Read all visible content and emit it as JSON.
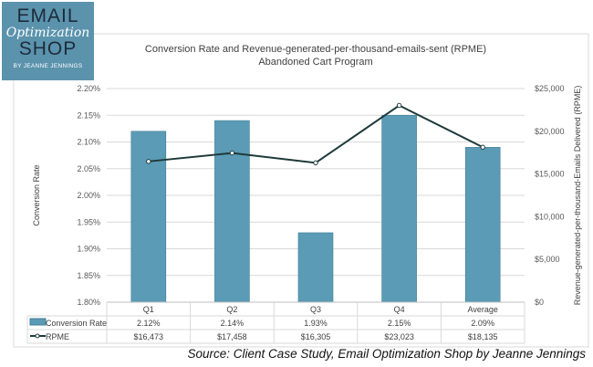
{
  "logo": {
    "line1": "EMAIL",
    "line2": "Optimization",
    "line3": "SHOP",
    "line4": "BY JEANNE JENNINGS"
  },
  "source": "Source: Client Case Study, Email Optimization Shop by Jeanne Jennings",
  "chart_data": {
    "type": "bar+line",
    "title": "Conversion Rate and Revenue-generated-per-thousand-emails-sent (RPME)",
    "subtitle": "Abandoned Cart Program",
    "categories": [
      "Q1",
      "Q2",
      "Q3",
      "Q4",
      "Average"
    ],
    "ylabel": "Conversion Rate",
    "y2label": "Revenue-generated-per-thousand-Emails Delivered (RPME)",
    "ylim": [
      1.8,
      2.2
    ],
    "yticks": [
      "1.80%",
      "1.85%",
      "1.90%",
      "1.95%",
      "2.00%",
      "2.05%",
      "2.10%",
      "2.15%",
      "2.20%"
    ],
    "y2lim": [
      0,
      25000
    ],
    "y2ticks": [
      "$0",
      "$5,000",
      "$10,000",
      "$15,000",
      "$20,000",
      "$25,000"
    ],
    "grid": true,
    "series": [
      {
        "name": "Conversion Rate",
        "type": "bar",
        "axis": "left",
        "values": [
          2.12,
          2.14,
          1.93,
          2.15,
          2.09
        ],
        "labels": [
          "2.12%",
          "2.14%",
          "1.93%",
          "2.15%",
          "2.09%"
        ],
        "color": "#5b9bb5"
      },
      {
        "name": "RPME",
        "type": "line",
        "axis": "right",
        "values": [
          16473,
          17458,
          16305,
          23023,
          18135
        ],
        "labels": [
          "$16,473",
          "$17,458",
          "$16,305",
          "$23,023",
          "$18,135"
        ],
        "color": "#1e3a3a"
      }
    ],
    "legend": "data-table"
  }
}
